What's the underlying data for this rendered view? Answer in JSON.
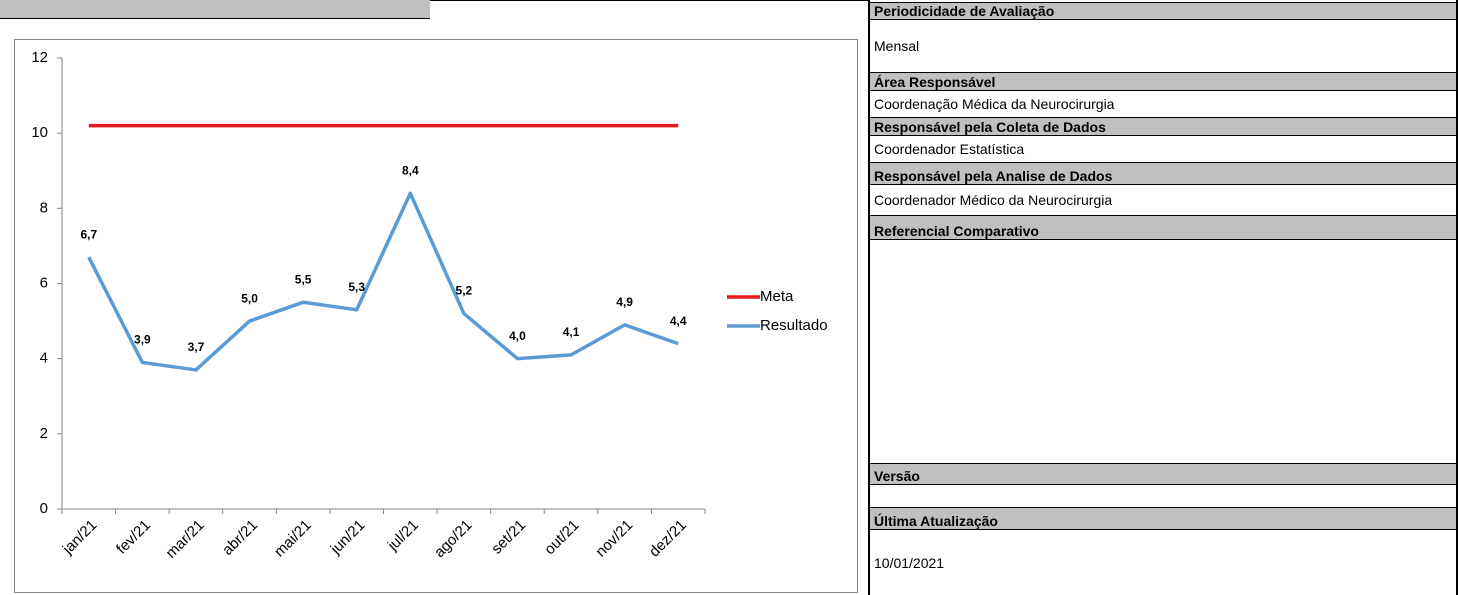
{
  "chart_data": {
    "type": "line",
    "categories": [
      "jan/21",
      "fev/21",
      "mar/21",
      "abr/21",
      "mai/21",
      "jun/21",
      "jul/21",
      "ago/21",
      "set/21",
      "out/21",
      "nov/21",
      "dez/21"
    ],
    "series": [
      {
        "name": "Meta",
        "color": "#e41a1c",
        "values": [
          10.2,
          10.2,
          10.2,
          10.2,
          10.2,
          10.2,
          10.2,
          10.2,
          10.2,
          10.2,
          10.2,
          10.2
        ]
      },
      {
        "name": "Resultado",
        "color": "#5b9bd5",
        "values": [
          6.7,
          3.9,
          3.7,
          5.0,
          5.5,
          5.3,
          8.4,
          5.2,
          4.0,
          4.1,
          4.9,
          4.4
        ],
        "value_labels": [
          "6,7",
          "3,9",
          "3,7",
          "5,0",
          "5,5",
          "5,3",
          "8,4",
          "5,2",
          "4,0",
          "4,1",
          "4,9",
          "4,4"
        ]
      }
    ],
    "ylim": [
      0,
      12
    ],
    "yticks": [
      0,
      2,
      4,
      6,
      8,
      10,
      12
    ],
    "grid": false,
    "legend": "right"
  },
  "panel": {
    "sections": [
      {
        "label": "Periodicidade de Avaliação",
        "value": "Mensal"
      },
      {
        "label": "Área Responsável",
        "value": "Coordenação Médica da Neurocirurgia"
      },
      {
        "label": "Responsável pela Coleta de Dados",
        "value": "Coordenador Estatística"
      },
      {
        "label": "Responsável pela Analise de Dados",
        "value": "Coordenador Médico da Neurocirurgia"
      },
      {
        "label": "Referencial Comparativo"
      },
      {
        "label": "Versão"
      },
      {
        "label": "Última Atualização",
        "value": "10/01/2021"
      }
    ]
  }
}
